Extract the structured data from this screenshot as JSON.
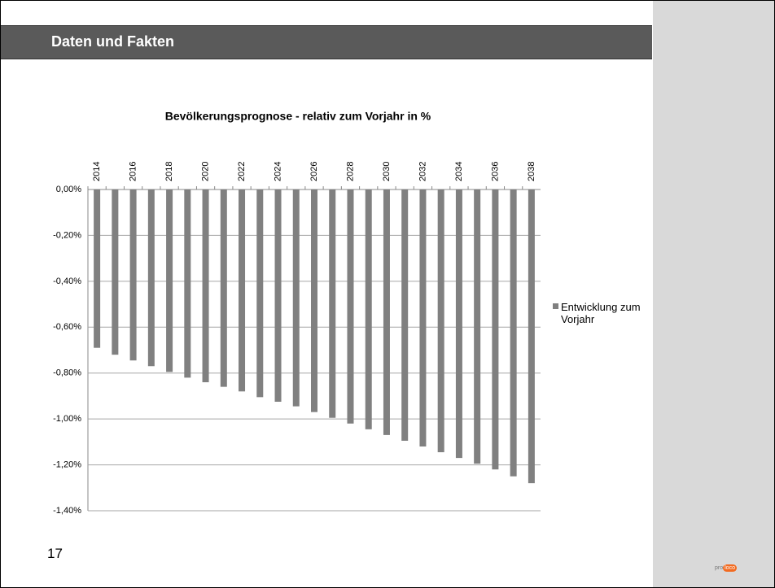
{
  "header": {
    "title": "Daten und Fakten"
  },
  "slide_number": "17",
  "logo": {
    "text": "pro",
    "highlight": "loco"
  },
  "chart_data": {
    "type": "bar",
    "title": "Bevölkerungsprognose - relativ zum Vorjahr in %",
    "categories": [
      "2014",
      null,
      "2016",
      null,
      "2018",
      null,
      "2020",
      null,
      "2022",
      null,
      "2024",
      null,
      "2026",
      null,
      "2028",
      null,
      "2030",
      null,
      "2032",
      null,
      "2034",
      null,
      "2036",
      null,
      "2038"
    ],
    "series": [
      {
        "name": "Entwicklung zum Vorjahr",
        "color": "#808080",
        "values": [
          -0.69,
          -0.72,
          -0.745,
          -0.77,
          -0.795,
          -0.82,
          -0.84,
          -0.86,
          -0.88,
          -0.905,
          -0.925,
          -0.945,
          -0.97,
          -0.995,
          -1.02,
          -1.045,
          -1.07,
          -1.095,
          -1.12,
          -1.145,
          -1.17,
          -1.195,
          -1.22,
          -1.25,
          -1.28
        ]
      }
    ],
    "ylim": [
      -1.4,
      0
    ],
    "yticks": [
      {
        "value": 0,
        "label": "0,00%"
      },
      {
        "value": -0.2,
        "label": "-0,20%"
      },
      {
        "value": -0.4,
        "label": "-0,40%"
      },
      {
        "value": -0.6,
        "label": "-0,60%"
      },
      {
        "value": -0.8,
        "label": "-0,80%"
      },
      {
        "value": -1.0,
        "label": "-1,00%"
      },
      {
        "value": -1.2,
        "label": "-1,20%"
      },
      {
        "value": -1.4,
        "label": "-1,40%"
      }
    ],
    "grid": true,
    "legend": "right"
  }
}
